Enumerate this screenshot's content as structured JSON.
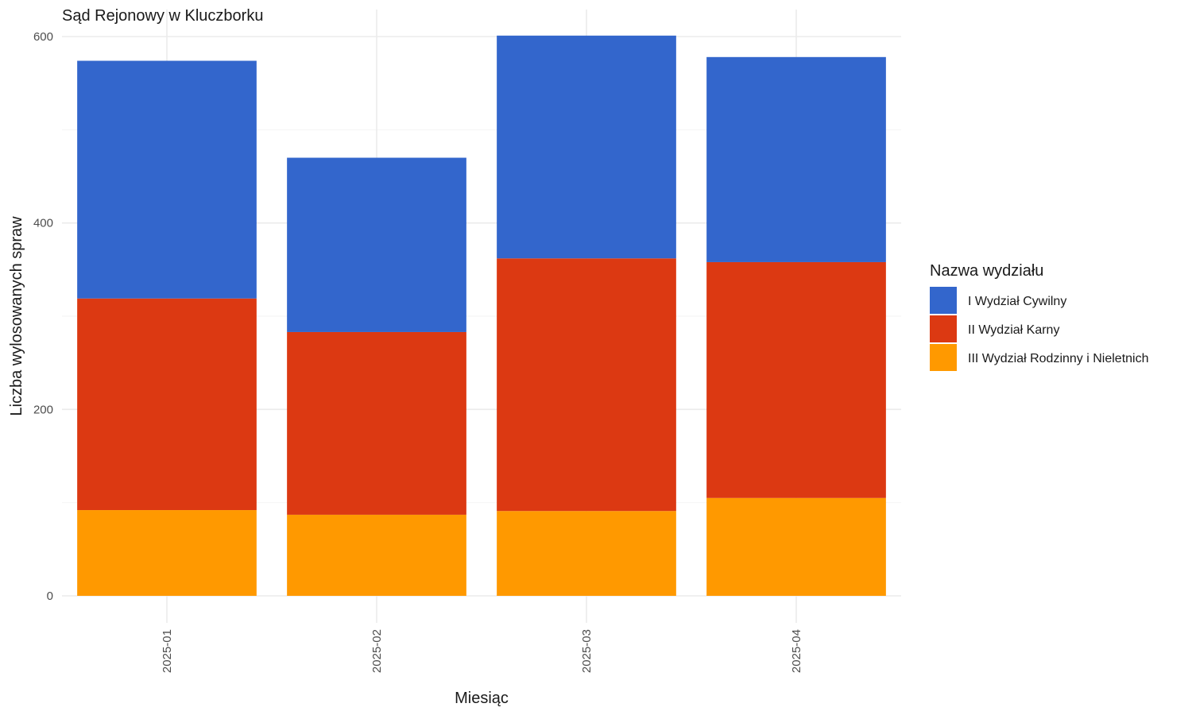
{
  "chart_data": {
    "type": "bar",
    "stacked": true,
    "title": "Sąd Rejonowy w Kluczborku",
    "xlabel": "Miesiąc",
    "ylabel": "Liczba wylosowanych spraw",
    "ylim": [
      0,
      600
    ],
    "yticks": [
      "0",
      "200",
      "400",
      "600"
    ],
    "categories": [
      "2025-01",
      "2025-02",
      "2025-03",
      "2025-04"
    ],
    "legend_title": "Nazwa wydziału",
    "legend_position": "right",
    "grid": true,
    "series": [
      {
        "name": "III Wydział Rodzinny i Nieletnich",
        "color": "#FF9900",
        "values": [
          92,
          87,
          91,
          105
        ]
      },
      {
        "name": "II Wydział Karny",
        "color": "#DC3912",
        "values": [
          227,
          196,
          271,
          253
        ]
      },
      {
        "name": "I Wydział Cywilny",
        "color": "#3366CC",
        "values": [
          255,
          187,
          239,
          220
        ]
      }
    ],
    "legend_order": [
      "I Wydział Cywilny",
      "II Wydział Karny",
      "III Wydział Rodzinny i Nieletnich"
    ]
  }
}
